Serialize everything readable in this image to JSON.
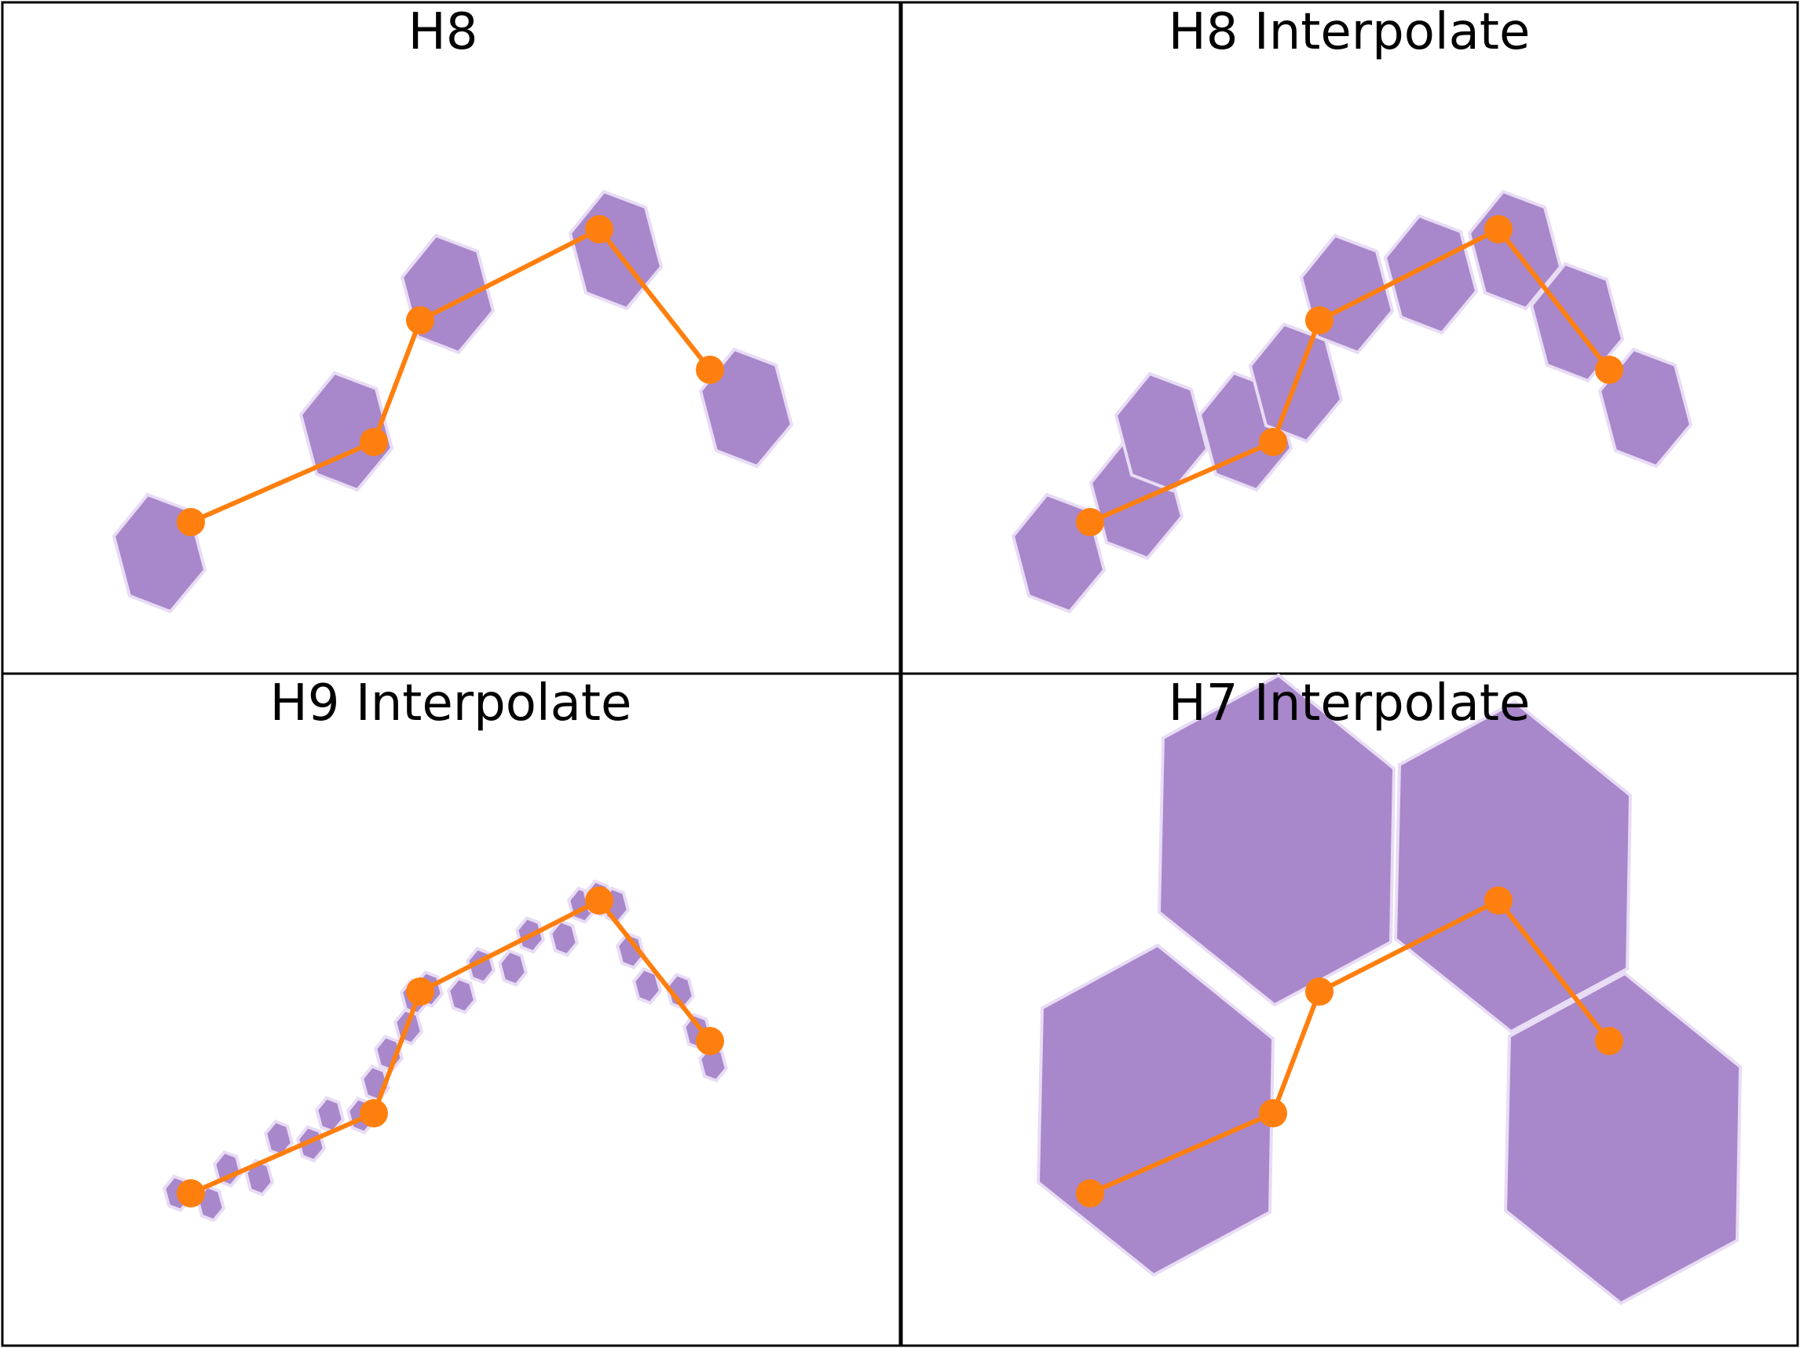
{
  "panels": [
    {
      "id": "h8",
      "title": "H8"
    },
    {
      "id": "h8-interpolate",
      "title": "H8 Interpolate"
    },
    {
      "id": "h9-interpolate",
      "title": "H9 Interpolate"
    },
    {
      "id": "h7-interpolate",
      "title": "H7 Interpolate"
    }
  ],
  "colors": {
    "hexagon_fill": "#a887ca",
    "hexagon_stroke": "#e8dcf5",
    "route": "#ff7f0e",
    "frame": "#000000"
  },
  "icons": {
    "cell": "hexagon",
    "route_point": "circle-marker"
  }
}
